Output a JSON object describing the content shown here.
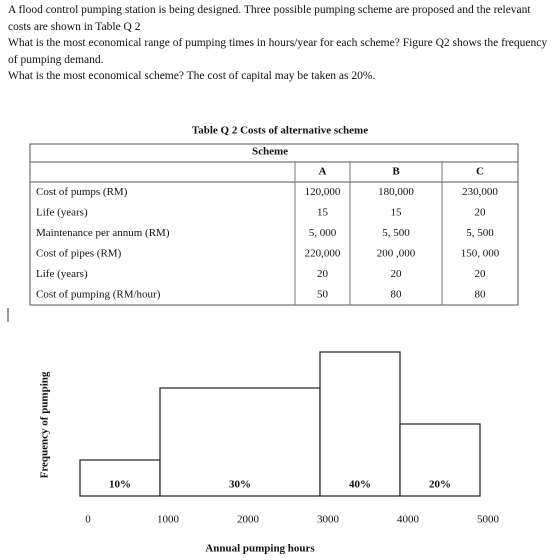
{
  "question": {
    "paragraphs": [
      "A flood control pumping station is being designed. Three possible pumping scheme are proposed and the relevant costs are shown in Table Q 2",
      "What is the most economical range of pumping times in hours/year for each scheme? Figure Q2 shows the frequency of pumping demand.",
      "What is the most economical scheme? The cost of capital may be taken as 20%."
    ]
  },
  "table": {
    "title": "Table Q 2 Costs of alternative scheme",
    "group_header": "Scheme",
    "columns": [
      "A",
      "B",
      "C"
    ],
    "rows": [
      [
        "Cost of pumps (RM)",
        "120,000",
        "180,000",
        "230,000"
      ],
      [
        "Life (years)",
        "15",
        "15",
        "20"
      ],
      [
        "Maintenance per annum (RM)",
        "5, 000",
        "5, 500",
        "5, 500"
      ],
      [
        "Cost of pipes (RM)",
        "220,000",
        "200 ,000",
        "150, 000"
      ],
      [
        "Life (years)",
        "20",
        "20",
        "20"
      ],
      [
        "Cost of pumping (RM/hour)",
        "50",
        "80",
        "80"
      ]
    ]
  },
  "chart_data": {
    "type": "histogram",
    "bins": [
      0,
      1000,
      3000,
      4000,
      5000
    ],
    "values": [
      10,
      30,
      40,
      20
    ],
    "value_labels": [
      "10%",
      "30%",
      "40%",
      "20%"
    ],
    "xticks": [
      0,
      1000,
      2000,
      3000,
      4000,
      5000
    ],
    "xlim": [
      0,
      5000
    ],
    "xlabel": "Annual pumping hours",
    "ylabel": "Frequency of pumping",
    "color": "#ffffff"
  }
}
